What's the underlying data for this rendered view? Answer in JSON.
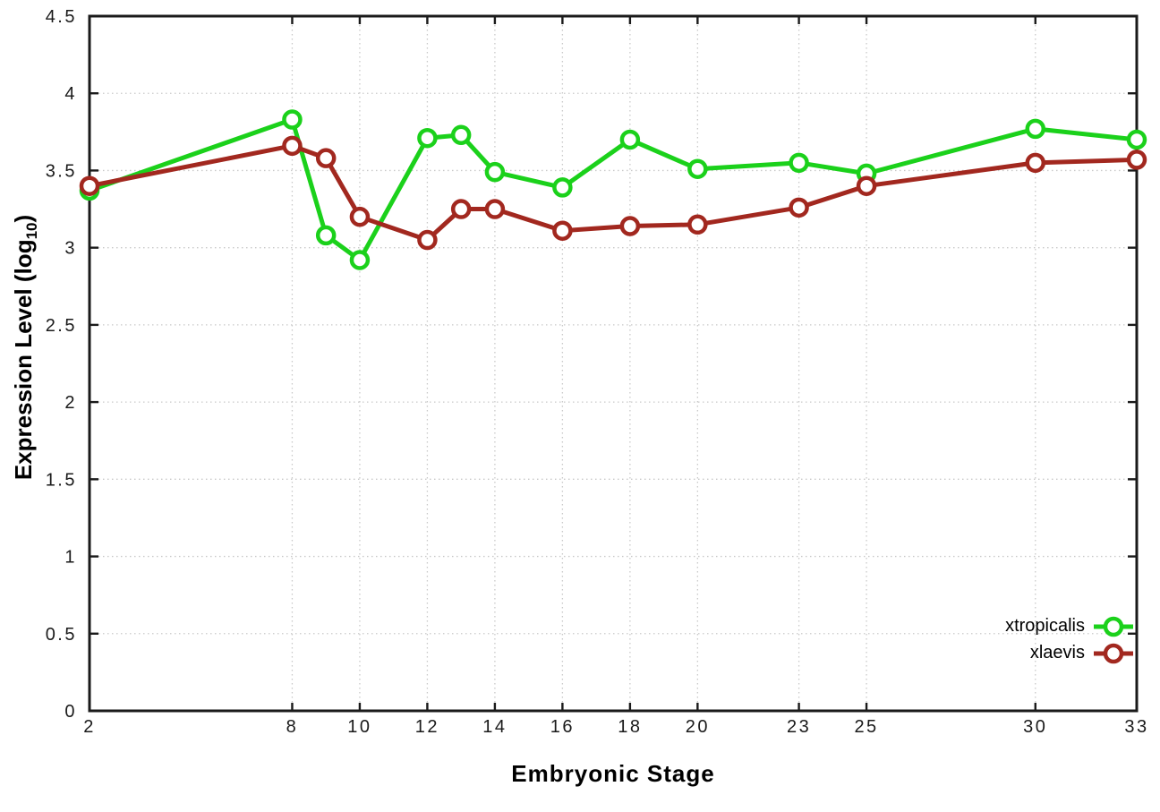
{
  "chart_data": {
    "type": "line",
    "title": "",
    "xlabel": "Embryonic Stage",
    "ylabel": {
      "main": "Expression Level (log",
      "sub": "10",
      "close": ")"
    },
    "ylabel_plain": "Expression Level (log10)",
    "x_axis": {
      "min": 2,
      "max": 33,
      "tick_labels": [
        "2",
        "8",
        "10",
        "12",
        "14",
        "16",
        "18",
        "20",
        "23",
        "25",
        "30",
        "33"
      ],
      "tick_values": [
        2,
        8,
        10,
        12,
        14,
        16,
        18,
        20,
        23,
        25,
        30,
        33
      ]
    },
    "y_axis": {
      "min": 0,
      "max": 4.5,
      "tick_labels": [
        "0",
        "0.5",
        "1",
        "1.5",
        "2",
        "2.5",
        "3",
        "3.5",
        "4",
        "4.5"
      ],
      "tick_values": [
        0,
        0.5,
        1,
        1.5,
        2,
        2.5,
        3,
        3.5,
        4,
        4.5
      ]
    },
    "grid": "dotted",
    "legend_position": "inside-bottom-right",
    "x": [
      2,
      8,
      9,
      10,
      12,
      13,
      14,
      16,
      18,
      20,
      23,
      25,
      30,
      33
    ],
    "series": [
      {
        "name": "xtropicalis",
        "color": "#1bd11b",
        "marker": "open-circle",
        "values": [
          3.37,
          3.83,
          3.08,
          2.92,
          3.71,
          3.73,
          3.49,
          3.39,
          3.7,
          3.51,
          3.55,
          3.48,
          3.77,
          3.7
        ]
      },
      {
        "name": "xlaevis",
        "color": "#a2281f",
        "marker": "open-circle",
        "values": [
          3.4,
          3.66,
          3.58,
          3.2,
          3.05,
          3.25,
          3.25,
          3.11,
          3.14,
          3.15,
          3.26,
          3.4,
          3.55,
          3.57
        ]
      }
    ],
    "colors": {
      "axis": "#1a1a1a",
      "grid": "#c9c9c9",
      "tick_label": "#1a1a1a",
      "background": "#ffffff"
    }
  }
}
